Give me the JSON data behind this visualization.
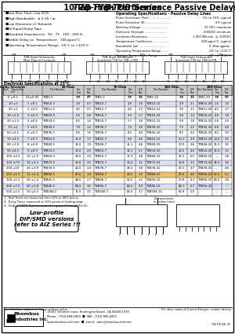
{
  "title_italic": "TZB-TYB-TUB Series",
  "title_normal": " 10-Tap High Performance Passive Delays",
  "features": [
    "Fast Rise Time, Low DCR",
    "High Bandwidth:  ≥ 0.35 / tᴃ",
    "Low Distortion LC Network",
    "10 Equal Delay Taps",
    "Standard Impedances:  50 · 75 · 100 · 200 Ω",
    "Stable Delay vs. Temperature:  100 ppm/°C",
    "Operating Temperature Range: -55°C to +125°C"
  ],
  "op_specs_title": "Operating Specifications - Passive Delay Lines",
  "op_specs": [
    [
      "Pulse Overshoot (Pos) .....................",
      "5% to 10%, typical"
    ],
    [
      "Pulse Distortion (δ) .........................",
      "2% typical"
    ],
    [
      "Working Voltage ...........................",
      "25 VDC maximum"
    ],
    [
      "Dielectric Strength .......................",
      "100VDC minimum"
    ],
    [
      "Insulation Resistance ....................",
      "1,000 MΩ min. @ 100VDC"
    ],
    [
      "Temperature Coefficient .................",
      "100 ppm/°C, typical"
    ],
    [
      "Bandwidth (tᴃ) ...........................",
      "0.35tᴃ approx."
    ],
    [
      "Operating Temperature Range .......",
      "-55° to +125°C"
    ],
    [
      "Storage Temperature Range .........",
      "-65° to +150°C"
    ]
  ],
  "table_data": [
    [
      "5 ±0.5",
      "0.5±0.05",
      "TZB5-5",
      "2.0",
      "0.7",
      "TZB5-7",
      "2.1",
      "0.8",
      "TZB5-10",
      "2.2",
      "4.8",
      "TZB5-20",
      "1.8",
      "0.9"
    ],
    [
      "10 ±1",
      "1 ±0.1",
      "TZB10-5",
      "3.0",
      "0.7",
      "TZB10-7",
      "3.0",
      "1.0",
      "TZB10-10",
      "2.9",
      "2.1",
      "TZB10-20",
      "2.4",
      "1.0"
    ],
    [
      "20 ±1",
      "2 ±0.2",
      "TZB12-5",
      "4.5",
      "0.7",
      "TZB12-7",
      "4.4",
      "2.2",
      "TZB12-10",
      "3.6",
      "1.1",
      "TZB12-20",
      "4.1",
      "1.7"
    ],
    [
      "30 ±1.5",
      "3 ±0.3",
      "TZB18-5",
      "5.5",
      "0.8",
      "TZB18-7",
      "5.0",
      "2.7",
      "TZB18-10",
      "4.8",
      "1.4",
      "TZB18-20",
      "4.8",
      "1.8"
    ],
    [
      "40 ±1.5",
      "4 ±0.4",
      "TZB24-5",
      "6.5",
      "1.0",
      "TZB24-7",
      "5.7",
      "3.0",
      "TZB24-10",
      "5.8",
      "1.8",
      "TZB24-20",
      "5.8",
      "2.4"
    ],
    [
      "50 ±2",
      "5 ±0.5",
      "TZB30-5",
      "7.0",
      "1.2",
      "TZB30-7",
      "7.3",
      "3.6",
      "TZB30-10",
      "7.0",
      "2.2",
      "TZB30-20",
      "6.9",
      "2.8"
    ],
    [
      "60 ±2.5",
      "6 ±0.7",
      "TZB36-5",
      "8.5",
      "1.5",
      "TZB36-7",
      "8.2",
      "4.0",
      "TZB36-10",
      "8.1",
      "2.5",
      "TZB36-20",
      "8.2",
      "3.0"
    ],
    [
      "70 ±3.5",
      "7 ±0.7",
      "TZB42-5",
      "11.0",
      "1.7",
      "TZB42-7",
      "9.4",
      "4.5",
      "TZB42-10",
      "10.1",
      "2.9",
      "TZB42-20",
      "10.0",
      "3.5"
    ],
    [
      "80 ±3.0",
      "8 ±0.8",
      "TZB48-5",
      "12.0",
      "1.9",
      "TZB48-7",
      "11.1",
      "4.8",
      "TZB48-10",
      "10.9",
      "3.6",
      "TZB48-20",
      "11.0",
      "3.5"
    ],
    [
      "90 ±4.5",
      "9 ±0.9",
      "TZB54-5",
      "13.0",
      "2.0",
      "TZB54-7",
      "12.1",
      "5.1",
      "TZB54-10",
      "12.5",
      "4.0",
      "TZB54-20",
      "11.0",
      "3.5"
    ],
    [
      "100 ±4.5",
      "10 ±1.0",
      "TZB60-5",
      "14.0",
      "2.0",
      "TZB60-7",
      "17.3",
      "3.8",
      "TZB60-10",
      "17.5",
      "6.1",
      "TZB60-20",
      "---",
      "3.8"
    ],
    [
      "150 ±7.5",
      "15 ±1.5",
      "TZB72-5",
      "16.0",
      "3.1",
      "TZB72-7",
      "16.4",
      "1.1",
      "TZB72-10",
      "16.6",
      "3.1",
      "TZB72-20",
      "14.0",
      "3.6"
    ],
    [
      "200 ±10",
      "20 ±3.0",
      "TZB78-5",
      "22.0",
      "2.4",
      "TZB78-7",
      "24.0",
      "2.8",
      "TZB78-10",
      "20.1",
      "3.7",
      "TZB78-20",
      "---",
      "4.8"
    ],
    [
      "250 ±1.5",
      "15 ±1.4",
      "TZB84-5",
      "40.0",
      "1.4",
      "TZB84-7",
      "43.0",
      "1.5",
      "TZB84-10",
      "40.0",
      "4.0",
      "TZB84-20",
      "54.0",
      "5.1"
    ],
    [
      "300 ±1.5",
      "30 ±1.4",
      "TZB90-5",
      "48.0",
      "2.7",
      "TZB90-7",
      "51.0",
      "2.5",
      "TZB90-10",
      "50.8",
      "6.3",
      "TZB90-20",
      "64.0",
      "3.8"
    ],
    [
      "400 ±2.0",
      "40 ±1.8",
      "TZB96-5",
      "68.0",
      "3.6",
      "TZB96-7",
      "68.0",
      "0.0",
      "TZB96-10",
      "68.1",
      "6.7",
      "TZB96-20",
      "---",
      "---"
    ],
    [
      "500 ±2.5",
      "50 ±2.5",
      "TZB588-5",
      "71.0",
      "3.1",
      "TZB588-7",
      "64.0",
      "3.7",
      "TZB588-10",
      "66.8",
      "5.0",
      "---",
      "---",
      "---"
    ]
  ],
  "highlight_row": 13,
  "notes": [
    "1.  Rise Times are measured from 10% to 90% points.",
    "2.  Delay Times measured at 50% points of leading edge.",
    "3.  Output (100% Tap) terminated to ground through Rt=Zo."
  ],
  "low_profile_note": "Low-profile\nDIP/SMD versions\nrefer to AIZ Series !!!",
  "disclaimer": "Specifications subject to change without notice.",
  "custom": "For other values & Custom Designs, contact factory.",
  "company_line1": "Rhombus",
  "company_line2": "Industries Inc.",
  "address": "15921 Chemical Lane, Huntington Beach, CA 92649-1595",
  "phone": "Phone:  (714) 898-0900  ■  FAX:  (714) 895-0871",
  "web": "www.rhombus-ind.com  ■  email:  sales@rhombus-ind.com"
}
